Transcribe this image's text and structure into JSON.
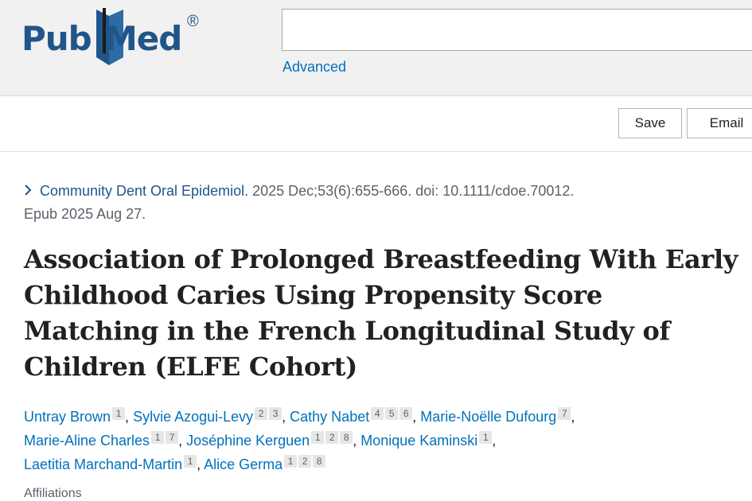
{
  "header": {
    "logo": {
      "part1": "Pub",
      "part2": "Med",
      "reg": "®"
    },
    "search": {
      "value": "",
      "placeholder": ""
    },
    "advanced_label": "Advanced"
  },
  "toolbar": {
    "save_label": "Save",
    "email_label": "Email"
  },
  "citation": {
    "journal": "Community Dent Oral Epidemiol.",
    "details": " 2025 Dec;53(6):655-666. doi: 10.1111/cdoe.70012.",
    "epub": "Epub 2025 Aug 27."
  },
  "article": {
    "title": "Association of Prolonged Breastfeeding With Early Childhood Caries Using Propensity Score Matching in the French Longitudinal Study of Children (ELFE Cohort)"
  },
  "authors": [
    {
      "name": "Untray Brown",
      "affs": [
        "1"
      ]
    },
    {
      "name": "Sylvie Azogui-Levy",
      "affs": [
        "2",
        "3"
      ]
    },
    {
      "name": "Cathy Nabet",
      "affs": [
        "4",
        "5",
        "6"
      ]
    },
    {
      "name": "Marie-Noëlle Dufourg",
      "affs": [
        "7"
      ]
    },
    {
      "name": "Marie-Aline Charles",
      "affs": [
        "1",
        "7"
      ]
    },
    {
      "name": "Joséphine Kerguen",
      "affs": [
        "1",
        "2",
        "8"
      ]
    },
    {
      "name": "Monique Kaminski",
      "affs": [
        "1"
      ]
    },
    {
      "name": "Laetitia Marchand-Martin",
      "affs": [
        "1"
      ]
    },
    {
      "name": "Alice Germa",
      "affs": [
        "1",
        "2",
        "8"
      ]
    }
  ],
  "affiliations_label": "Affiliations",
  "colors": {
    "brand": "#20558a",
    "link": "#0071bc",
    "muted": "#5b616b"
  }
}
